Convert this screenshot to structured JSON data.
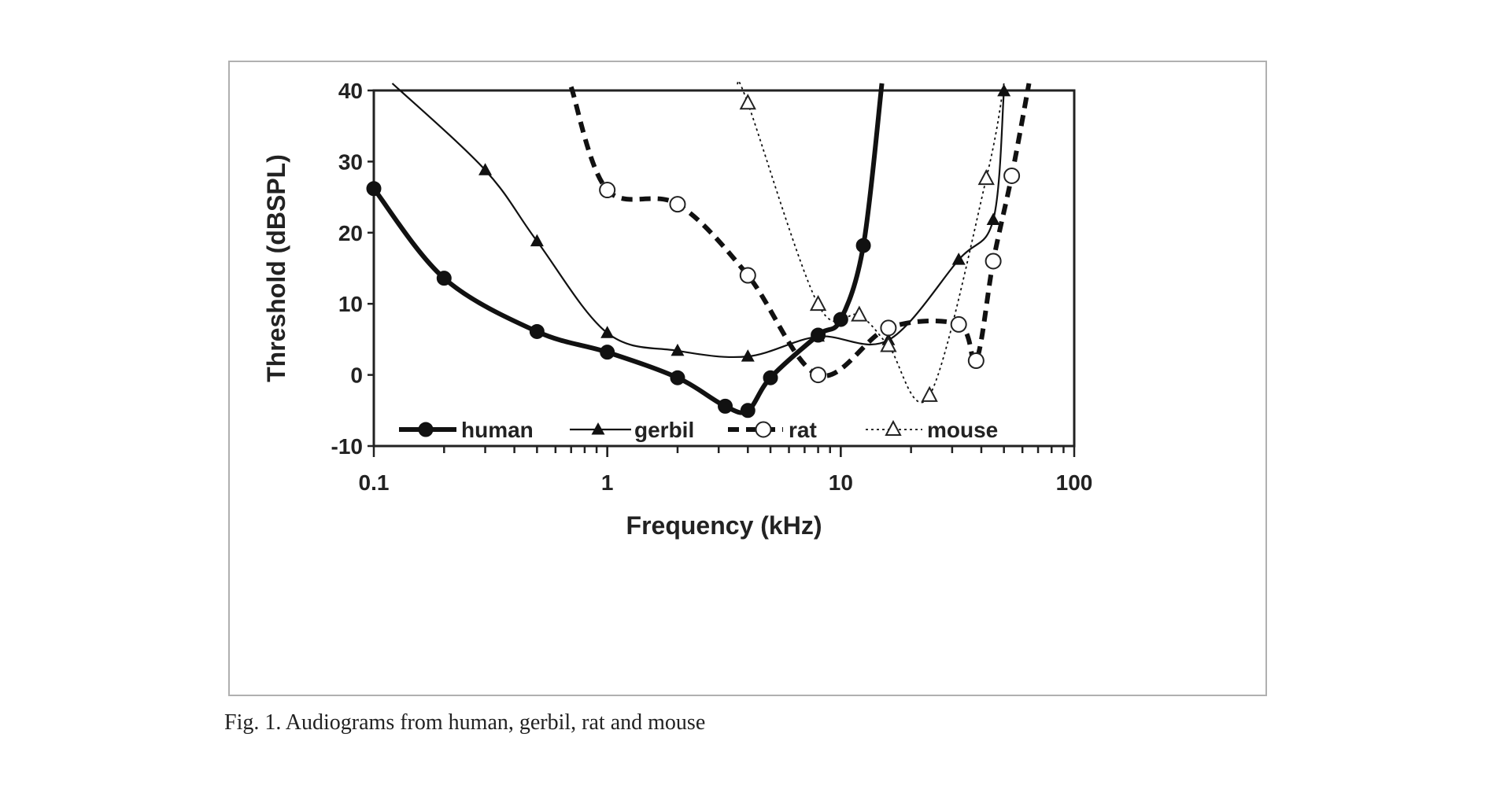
{
  "caption": "Fig. 1. Audiograms from human, gerbil, rat and mouse",
  "chart_data": {
    "type": "line",
    "title": "",
    "xlabel": "Frequency (kHz)",
    "ylabel": "Threshold (dBSPL)",
    "xscale": "log",
    "xlim": [
      0.1,
      100
    ],
    "ylim": [
      -10,
      40
    ],
    "xticks": [
      0.1,
      1,
      10,
      100
    ],
    "xtick_labels": [
      "0.1",
      "1",
      "10",
      "100"
    ],
    "yticks": [
      -10,
      0,
      10,
      20,
      30,
      40
    ],
    "ytick_labels": [
      "-10",
      "0",
      "10",
      "20",
      "30",
      "40"
    ],
    "grid": false,
    "legend_position": "bottom",
    "series": [
      {
        "name": "human",
        "marker": "filled-circle",
        "line": "thick-solid",
        "x": [
          0.1,
          0.2,
          0.5,
          1,
          2,
          3.2,
          4,
          5,
          8,
          10,
          12.5
        ],
        "y": [
          26.2,
          13.6,
          6.1,
          3.2,
          -0.4,
          -4.4,
          -5,
          -0.4,
          5.6,
          7.8,
          18.2
        ],
        "curve_end": [
          15,
          41
        ]
      },
      {
        "name": "gerbil",
        "marker": "filled-triangle",
        "line": "thin-solid",
        "x": [
          0.3,
          0.5,
          1,
          2,
          4,
          8,
          16,
          32,
          45,
          50
        ],
        "y": [
          28.8,
          18.8,
          5.9,
          3.4,
          2.6,
          5.4,
          4.9,
          16.2,
          21.8,
          39.9
        ],
        "curve_start": [
          0.12,
          41
        ]
      },
      {
        "name": "rat",
        "marker": "open-circle",
        "line": "thick-dashed",
        "x": [
          1,
          2,
          4,
          8,
          16,
          32,
          38,
          45,
          54
        ],
        "y": [
          26,
          24,
          14,
          0,
          6.6,
          7.1,
          2,
          16,
          28
        ],
        "curve_start": [
          0.7,
          40.5
        ],
        "curve_end": [
          64,
          41
        ]
      },
      {
        "name": "mouse",
        "marker": "open-triangle",
        "line": "thin-dotted",
        "x": [
          4,
          8,
          12,
          16,
          24,
          42
        ],
        "y": [
          38.2,
          9.9,
          8.4,
          4.1,
          -2.9,
          27.6
        ],
        "curve_start": [
          3.6,
          41
        ],
        "curve_end": [
          50,
          41
        ]
      }
    ]
  }
}
